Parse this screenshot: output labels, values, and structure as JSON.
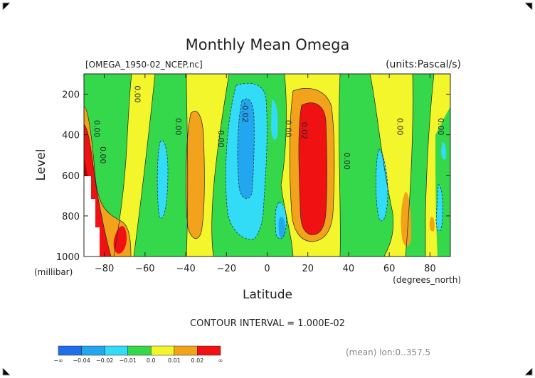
{
  "chart_data": {
    "type": "heatmap",
    "title": "Monthly Mean Omega",
    "file_label": "[OMEGA_1950-02_NCEP.nc]",
    "units_label": "(units:Pascal/s)",
    "xlabel": "Latitude",
    "x_units": "(degrees_north)",
    "ylabel": "Level",
    "y_units": "(millibar)",
    "xlim": [
      -90,
      90
    ],
    "ylim": [
      1000,
      100
    ],
    "x_ticks": [
      -80,
      -60,
      -40,
      -20,
      0,
      20,
      40,
      60,
      80
    ],
    "x_tick_labels": [
      "−80",
      "−60",
      "−40",
      "−20",
      "0",
      "20",
      "40",
      "60",
      "80"
    ],
    "y_ticks": [
      200,
      400,
      600,
      800,
      1000
    ],
    "contour_interval_text": "CONTOUR INTERVAL = 1.000E-02",
    "mean_text": "(mean) lon:0..357.5",
    "legend": {
      "labels": [
        "−∞",
        "−0.04",
        "−0.02",
        "−0.01",
        "0.0",
        "0.01",
        "0.02",
        "∞"
      ],
      "colors": [
        "#1f6fe8",
        "#22a6f0",
        "#33dcf6",
        "#35d84a",
        "#f2f62a",
        "#f3a21b",
        "#f01212"
      ]
    },
    "contour_labels": [
      {
        "text": "0.00",
        "lat": -85,
        "lev": 370
      },
      {
        "text": "0.00",
        "lat": -82,
        "lev": 500
      },
      {
        "text": "0.00",
        "lat": -65,
        "lev": 200
      },
      {
        "text": "0.00",
        "lat": -45,
        "lev": 360
      },
      {
        "text": "0.00",
        "lat": -24,
        "lev": 420
      },
      {
        "text": "-0.02",
        "lat": -12,
        "lev": 290
      },
      {
        "text": "0.00",
        "lat": 9,
        "lev": 370
      },
      {
        "text": "0.02",
        "lat": 17,
        "lev": 380
      },
      {
        "text": "0.00",
        "lat": 38,
        "lev": 530
      },
      {
        "text": "0.00",
        "lat": 64,
        "lev": 360
      },
      {
        "text": "0.00",
        "lat": 84,
        "lev": 360
      }
    ]
  }
}
